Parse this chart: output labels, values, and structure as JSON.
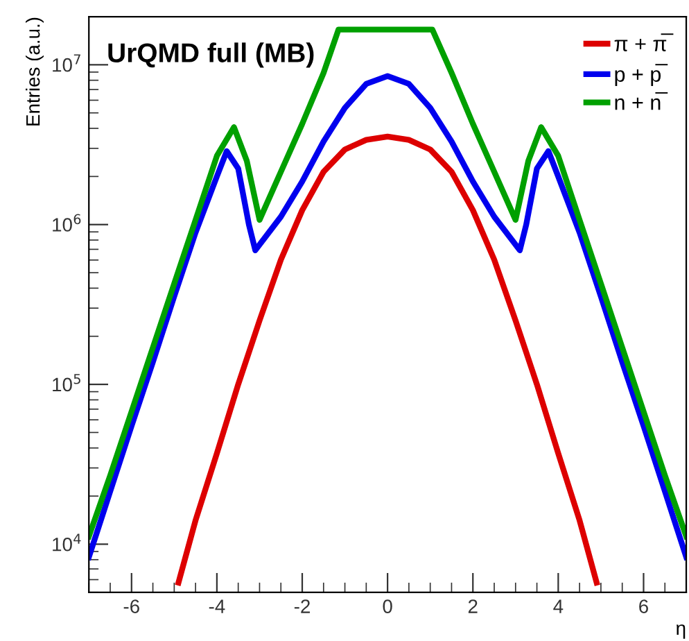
{
  "chart_data": {
    "type": "line",
    "xlabel": "η",
    "ylabel": "Entries (a.u.)",
    "annotations": [
      "UrQMD full (MB)"
    ],
    "log": "y",
    "grid": false,
    "legend": "top right",
    "marker": "none",
    "line_style": "solid",
    "xlim": [
      -7,
      7
    ],
    "xticks": [
      -6,
      -4,
      -2,
      0,
      2,
      4,
      6
    ],
    "ylim": [
      5000,
      20000000
    ],
    "yticks": [
      {
        "value": 10000,
        "label": "10$^{4}$"
      },
      {
        "value": 100000,
        "label": "10$^{5}$"
      },
      {
        "value": 1000000,
        "label": "10$^{6}$"
      },
      {
        "value": 10000000,
        "label": "10$^{7}$"
      }
    ],
    "series": [
      {
        "name": "π + π̅",
        "color": "#dd0000",
        "x": [
          -4.9,
          -4.5,
          -4,
          -3.5,
          -3,
          -2.5,
          -2,
          -1.5,
          -1,
          -0.5,
          0,
          0.5,
          1,
          1.5,
          2,
          2.5,
          3,
          3.5,
          4,
          4.5,
          4.9
        ],
        "values": [
          5750,
          14100,
          37000,
          100000,
          251000,
          603000,
          1230000,
          2140000,
          2950000,
          3390000,
          3550000,
          3390000,
          2950000,
          2140000,
          1230000,
          603000,
          251000,
          100000,
          37000,
          14100,
          5750
        ]
      },
      {
        "name": "p + p̅",
        "color": "#0000ee",
        "x": [
          -7,
          -6.5,
          -6,
          -5.5,
          -5,
          -4.5,
          -4,
          -3.77,
          -3.5,
          -3.25,
          -3.1,
          -2.5,
          -2,
          -1.5,
          -1,
          -0.5,
          0,
          0.5,
          1,
          1.5,
          2,
          2.5,
          3.1,
          3.25,
          3.5,
          3.77,
          4,
          4.5,
          5,
          5.5,
          6,
          6.5,
          7
        ],
        "values": [
          8300,
          21400,
          55000,
          138000,
          355000,
          891000,
          2000000,
          2880000,
          2240000,
          1000000,
          690000,
          1120000,
          1860000,
          3310000,
          5370000,
          7590000,
          8500000,
          7590000,
          5370000,
          3310000,
          1860000,
          1120000,
          690000,
          1000000,
          2240000,
          2880000,
          2000000,
          891000,
          355000,
          138000,
          55000,
          21400,
          8300
        ]
      },
      {
        "name": "n + n̅",
        "color": "#00a000",
        "x": [
          -7,
          -6.5,
          -6,
          -5.5,
          -5,
          -4.5,
          -4,
          -3.6,
          -3.3,
          -3,
          -2.5,
          -2,
          -1.5,
          -1.15,
          1.05,
          1.5,
          2,
          2.5,
          3,
          3.3,
          3.6,
          4,
          4.5,
          5,
          5.5,
          6,
          6.5,
          7
        ],
        "values": [
          11200,
          26900,
          67600,
          170000,
          427000,
          1070000,
          2690000,
          4070000,
          2510000,
          1070000,
          2140000,
          4270000,
          8900000,
          16600000,
          16600000,
          8900000,
          4270000,
          2140000,
          1070000,
          2510000,
          4070000,
          2690000,
          1070000,
          427000,
          170000,
          67600,
          26900,
          11200
        ]
      }
    ]
  }
}
